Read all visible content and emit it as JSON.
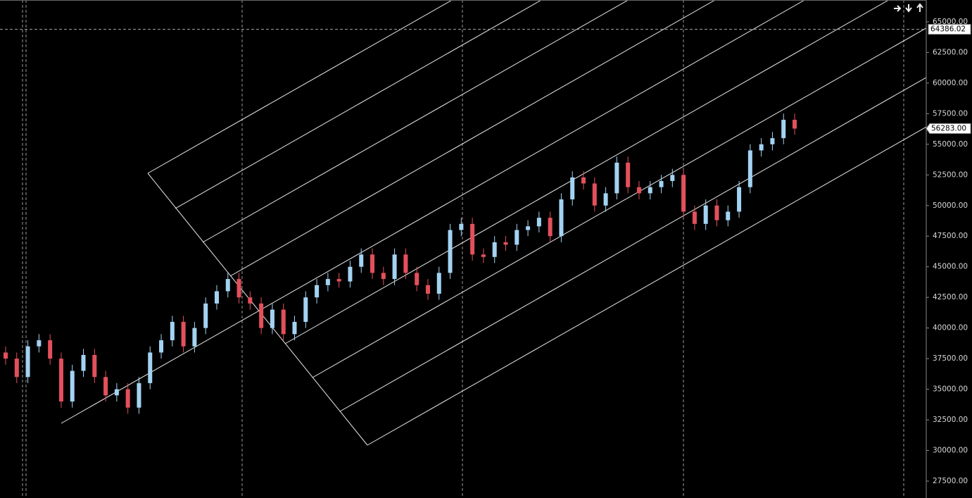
{
  "chart_data": {
    "type": "candlestick",
    "open": [
      38000,
      37500,
      36000,
      38500,
      39000,
      37500,
      34000,
      36500,
      37800,
      36000,
      34500,
      35000,
      33500,
      35500,
      38000,
      39000,
      40500,
      38500,
      40000,
      42000,
      43000,
      44000,
      42500,
      42000,
      40000,
      41500,
      39500,
      40500,
      42500,
      43500,
      44000,
      43800,
      45000,
      46000,
      44500,
      44000,
      46000,
      44500,
      43500,
      42800,
      44500,
      48000,
      48500,
      46000,
      45800,
      47000,
      46800,
      48000,
      48300,
      49000,
      47500,
      50500,
      52300,
      51800,
      50000,
      51000,
      53500,
      51500,
      51000,
      51500,
      52000,
      52500,
      49500,
      48500,
      50000,
      48800,
      49500,
      51500,
      54500,
      55000,
      55500,
      57000
    ],
    "high": [
      38500,
      38000,
      39000,
      39500,
      39500,
      38000,
      37000,
      38300,
      38300,
      36500,
      35500,
      35500,
      36000,
      38500,
      39500,
      41000,
      41000,
      40500,
      42500,
      43500,
      44500,
      44500,
      43000,
      42500,
      42000,
      42000,
      41000,
      43000,
      44000,
      44500,
      44500,
      45500,
      46500,
      46500,
      45000,
      46500,
      46500,
      45000,
      44000,
      45000,
      48500,
      49000,
      49000,
      46500,
      47500,
      47500,
      48500,
      48800,
      49500,
      49500,
      51000,
      52800,
      52800,
      52300,
      51500,
      54000,
      54000,
      52000,
      52000,
      52500,
      53000,
      53000,
      50000,
      50500,
      50500,
      50000,
      52000,
      55000,
      55500,
      56000,
      57500,
      57500
    ],
    "low": [
      37000,
      35500,
      35500,
      38000,
      37000,
      33500,
      33500,
      36000,
      35500,
      34000,
      34000,
      33000,
      33000,
      35000,
      37500,
      38500,
      38000,
      38000,
      39500,
      41500,
      42500,
      42000,
      41500,
      39500,
      39500,
      39000,
      39000,
      40000,
      42000,
      43000,
      43300,
      43300,
      44500,
      44000,
      43500,
      43500,
      44000,
      43000,
      42300,
      42300,
      44000,
      47500,
      45500,
      45300,
      45300,
      46300,
      46300,
      47500,
      47800,
      47000,
      47000,
      50000,
      51300,
      49500,
      49500,
      50500,
      51000,
      50500,
      50500,
      51000,
      51500,
      49000,
      48000,
      48000,
      48300,
      48300,
      49000,
      51000,
      54000,
      54500,
      55000,
      55783
    ],
    "close": [
      37500,
      36000,
      38500,
      39000,
      37500,
      34000,
      36500,
      37800,
      36000,
      34500,
      35000,
      33500,
      35500,
      38000,
      39000,
      40500,
      38500,
      40000,
      42000,
      43000,
      44000,
      42500,
      42000,
      40000,
      41500,
      39500,
      40500,
      42500,
      43500,
      44000,
      43800,
      45000,
      46000,
      44500,
      44000,
      46000,
      44500,
      43500,
      42800,
      44500,
      48000,
      48500,
      46000,
      45800,
      47000,
      46800,
      48000,
      48300,
      49000,
      47500,
      50500,
      52300,
      51800,
      50000,
      51000,
      53500,
      51500,
      51000,
      51500,
      52000,
      52500,
      49500,
      48500,
      50000,
      48800,
      49500,
      51500,
      54500,
      55000,
      55500,
      57000,
      56283
    ],
    "up_color": "#a3d3f2",
    "down_color": "#e3505c",
    "ylim": [
      26120,
      66780
    ],
    "yticks": [
      {
        "value": 27500,
        "label": "27500.00"
      },
      {
        "value": 30000,
        "label": "30000.00"
      },
      {
        "value": 32500,
        "label": "32500.00"
      },
      {
        "value": 35000,
        "label": "35000.00"
      },
      {
        "value": 37500,
        "label": "37500.00"
      },
      {
        "value": 40000,
        "label": "40000.00"
      },
      {
        "value": 42500,
        "label": "42500.00"
      },
      {
        "value": 45000,
        "label": "45000.00"
      },
      {
        "value": 47500,
        "label": "47500.00"
      },
      {
        "value": 50000,
        "label": "50000.00"
      },
      {
        "value": 52500,
        "label": "52500.00"
      },
      {
        "value": 55000,
        "label": "55000.00"
      },
      {
        "value": 57500,
        "label": "57500.00"
      },
      {
        "value": 60000,
        "label": "60000.00"
      },
      {
        "value": 62500,
        "label": "62500.00"
      },
      {
        "value": 65000,
        "label": "65000.00"
      }
    ],
    "last_price": {
      "value": 56283,
      "label": "56283.00"
    },
    "crosshair_price": {
      "value": 64386.02,
      "label": "64386.02"
    }
  }
}
